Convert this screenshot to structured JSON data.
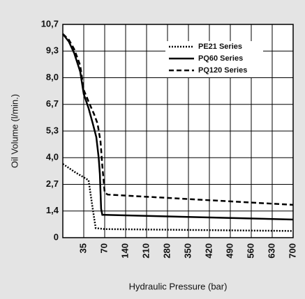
{
  "chart_data": {
    "type": "line",
    "x_label": "Hydraulic Pressure (bar)",
    "y_label": "Oil Volume (l/min.)",
    "xlim": [
      0,
      700
    ],
    "xticks": [
      35,
      70,
      140,
      210,
      280,
      350,
      420,
      490,
      560,
      630,
      700
    ],
    "ylim": [
      0,
      10.7
    ],
    "yticks": [
      0,
      {
        "value": 1.4,
        "label": "1,4"
      },
      {
        "value": 2.7,
        "label": "2,7"
      },
      {
        "value": 4.0,
        "label": "4,0"
      },
      {
        "value": 5.3,
        "label": "5,3"
      },
      {
        "value": 6.7,
        "label": "6,7"
      },
      {
        "value": 8.0,
        "label": "8,0"
      },
      {
        "value": 9.3,
        "label": "9,3"
      },
      {
        "value": 10.7,
        "label": "10,7"
      }
    ],
    "grid": true,
    "legend": "upper right",
    "series": [
      {
        "name": "PE21 Series",
        "color": "#000000",
        "dash": "dotted",
        "x": [
          0,
          20,
          43,
          50,
          55,
          70,
          700
        ],
        "values": [
          3.7,
          3.3,
          2.9,
          1.5,
          0.5,
          0.45,
          0.35
        ]
      },
      {
        "name": "PQ60 Series",
        "color": "#000000",
        "dash": "solid",
        "x": [
          0,
          10,
          19,
          29,
          35,
          43,
          50,
          56,
          60,
          62,
          64,
          66,
          70,
          700
        ],
        "values": [
          10.2,
          9.8,
          9.2,
          8.3,
          7.2,
          6.5,
          5.7,
          5.0,
          4.0,
          3.2,
          1.5,
          1.2,
          1.2,
          0.95
        ]
      },
      {
        "name": "PQ120 Series",
        "color": "#000000",
        "dash": "dashed",
        "x": [
          0,
          10,
          19,
          29,
          35,
          45,
          52,
          58,
          63,
          66,
          70,
          80,
          700
        ],
        "values": [
          10.2,
          9.9,
          9.4,
          8.6,
          7.4,
          6.7,
          6.2,
          5.7,
          4.8,
          3.6,
          2.3,
          2.2,
          1.7
        ]
      }
    ]
  }
}
